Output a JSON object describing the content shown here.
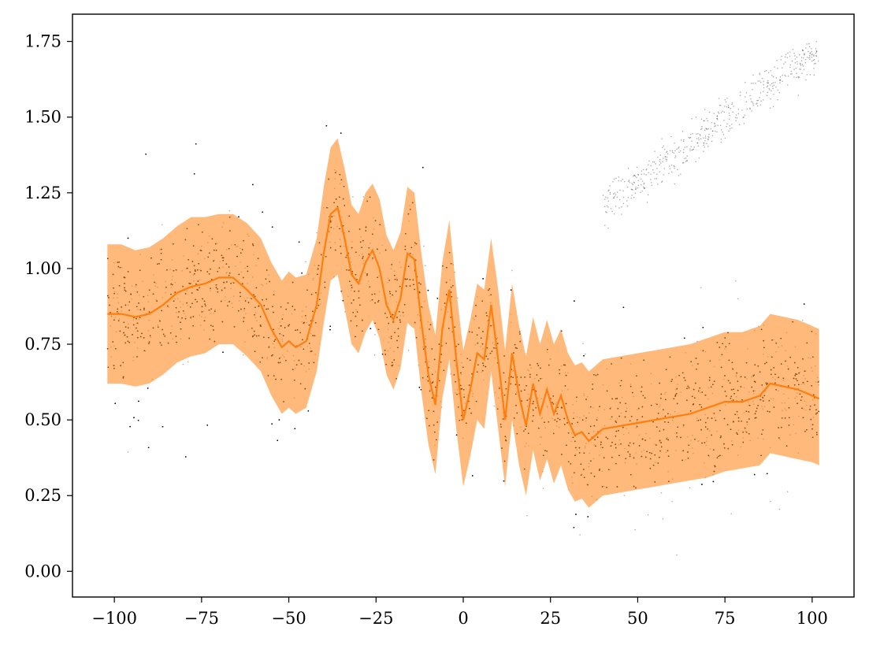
{
  "chart_data": {
    "type": "scatter",
    "title": "",
    "xlabel": "",
    "ylabel": "",
    "xlim": [
      -112,
      112
    ],
    "ylim": [
      -0.085,
      1.84
    ],
    "xticks": [
      -100,
      -75,
      -50,
      -25,
      0,
      25,
      50,
      75,
      100
    ],
    "xtick_labels": [
      "−100",
      "−75",
      "−50",
      "−25",
      "0",
      "25",
      "50",
      "75",
      "100"
    ],
    "yticks": [
      0.0,
      0.25,
      0.5,
      0.75,
      1.0,
      1.25,
      1.5,
      1.75
    ],
    "ytick_labels": [
      "0.00",
      "0.25",
      "0.50",
      "0.75",
      "1.00",
      "1.25",
      "1.50",
      "1.75"
    ],
    "grid": false,
    "legend": "none",
    "colors": {
      "points": "#000000",
      "band": "#ff7f0e",
      "line": "#ff7f0e"
    },
    "series": [
      {
        "kind": "mean_line",
        "x": [
          -102,
          -98,
          -94,
          -90,
          -86,
          -82,
          -78,
          -74,
          -70,
          -66,
          -62,
          -58,
          -55,
          -52,
          -50,
          -48,
          -45,
          -42,
          -40,
          -38,
          -36,
          -34,
          -32,
          -30,
          -28,
          -26,
          -24,
          -22,
          -20,
          -18,
          -16,
          -14,
          -12,
          -10,
          -8,
          -6,
          -4,
          -2,
          0,
          2,
          4,
          6,
          8,
          10,
          12,
          14,
          16,
          18,
          20,
          22,
          24,
          26,
          28,
          30,
          32,
          34,
          36,
          38,
          40,
          45,
          50,
          55,
          60,
          65,
          70,
          75,
          80,
          85,
          88,
          92,
          96,
          100,
          102
        ],
        "y": [
          0.85,
          0.85,
          0.84,
          0.85,
          0.88,
          0.92,
          0.94,
          0.95,
          0.97,
          0.97,
          0.93,
          0.88,
          0.8,
          0.74,
          0.76,
          0.74,
          0.76,
          0.88,
          1.05,
          1.18,
          1.2,
          1.1,
          0.98,
          0.95,
          1.02,
          1.06,
          1.0,
          0.88,
          0.83,
          0.9,
          1.05,
          1.03,
          0.82,
          0.65,
          0.55,
          0.8,
          0.93,
          0.7,
          0.5,
          0.6,
          0.72,
          0.7,
          0.88,
          0.7,
          0.5,
          0.72,
          0.58,
          0.48,
          0.62,
          0.52,
          0.6,
          0.52,
          0.58,
          0.5,
          0.45,
          0.46,
          0.43,
          0.45,
          0.47,
          0.48,
          0.49,
          0.5,
          0.51,
          0.52,
          0.54,
          0.56,
          0.56,
          0.58,
          0.62,
          0.61,
          0.6,
          0.58,
          0.57
        ]
      },
      {
        "kind": "band",
        "x": [
          -102,
          -98,
          -94,
          -90,
          -86,
          -82,
          -78,
          -74,
          -70,
          -66,
          -62,
          -58,
          -55,
          -52,
          -50,
          -48,
          -45,
          -42,
          -40,
          -38,
          -36,
          -34,
          -32,
          -30,
          -28,
          -26,
          -24,
          -22,
          -20,
          -18,
          -16,
          -14,
          -12,
          -10,
          -8,
          -6,
          -4,
          -2,
          0,
          2,
          4,
          6,
          8,
          10,
          12,
          14,
          16,
          18,
          20,
          22,
          24,
          26,
          28,
          30,
          32,
          34,
          36,
          38,
          40,
          45,
          50,
          55,
          60,
          65,
          70,
          75,
          80,
          85,
          88,
          92,
          96,
          100,
          102
        ],
        "upper": [
          1.08,
          1.08,
          1.06,
          1.07,
          1.1,
          1.14,
          1.17,
          1.17,
          1.18,
          1.18,
          1.15,
          1.1,
          1.02,
          0.96,
          0.99,
          0.97,
          0.98,
          1.1,
          1.27,
          1.4,
          1.43,
          1.33,
          1.21,
          1.18,
          1.25,
          1.28,
          1.23,
          1.11,
          1.06,
          1.12,
          1.27,
          1.25,
          1.05,
          0.88,
          0.78,
          1.02,
          1.16,
          0.93,
          0.73,
          0.83,
          0.95,
          0.93,
          1.1,
          0.93,
          0.73,
          0.95,
          0.81,
          0.71,
          0.84,
          0.75,
          0.83,
          0.75,
          0.8,
          0.72,
          0.68,
          0.69,
          0.66,
          0.68,
          0.7,
          0.71,
          0.72,
          0.73,
          0.74,
          0.75,
          0.77,
          0.79,
          0.79,
          0.81,
          0.85,
          0.84,
          0.83,
          0.81,
          0.8
        ],
        "lower": [
          0.62,
          0.62,
          0.61,
          0.62,
          0.65,
          0.69,
          0.71,
          0.72,
          0.75,
          0.75,
          0.71,
          0.66,
          0.58,
          0.52,
          0.54,
          0.52,
          0.54,
          0.66,
          0.82,
          0.96,
          0.98,
          0.87,
          0.75,
          0.72,
          0.79,
          0.83,
          0.77,
          0.65,
          0.6,
          0.67,
          0.82,
          0.8,
          0.59,
          0.42,
          0.32,
          0.57,
          0.7,
          0.47,
          0.28,
          0.38,
          0.5,
          0.47,
          0.66,
          0.47,
          0.28,
          0.5,
          0.35,
          0.25,
          0.4,
          0.3,
          0.37,
          0.29,
          0.35,
          0.27,
          0.23,
          0.24,
          0.21,
          0.23,
          0.25,
          0.26,
          0.27,
          0.28,
          0.29,
          0.3,
          0.31,
          0.33,
          0.34,
          0.35,
          0.39,
          0.38,
          0.37,
          0.36,
          0.35
        ]
      },
      {
        "kind": "scatter_points",
        "description_values": "dense cloud of ~20,000 small black points centered on the mean line with a wider spread than the band; sparse upper-right arm rising from about 1.2 at x=40 to about 1.73 at x=100"
      }
    ]
  }
}
